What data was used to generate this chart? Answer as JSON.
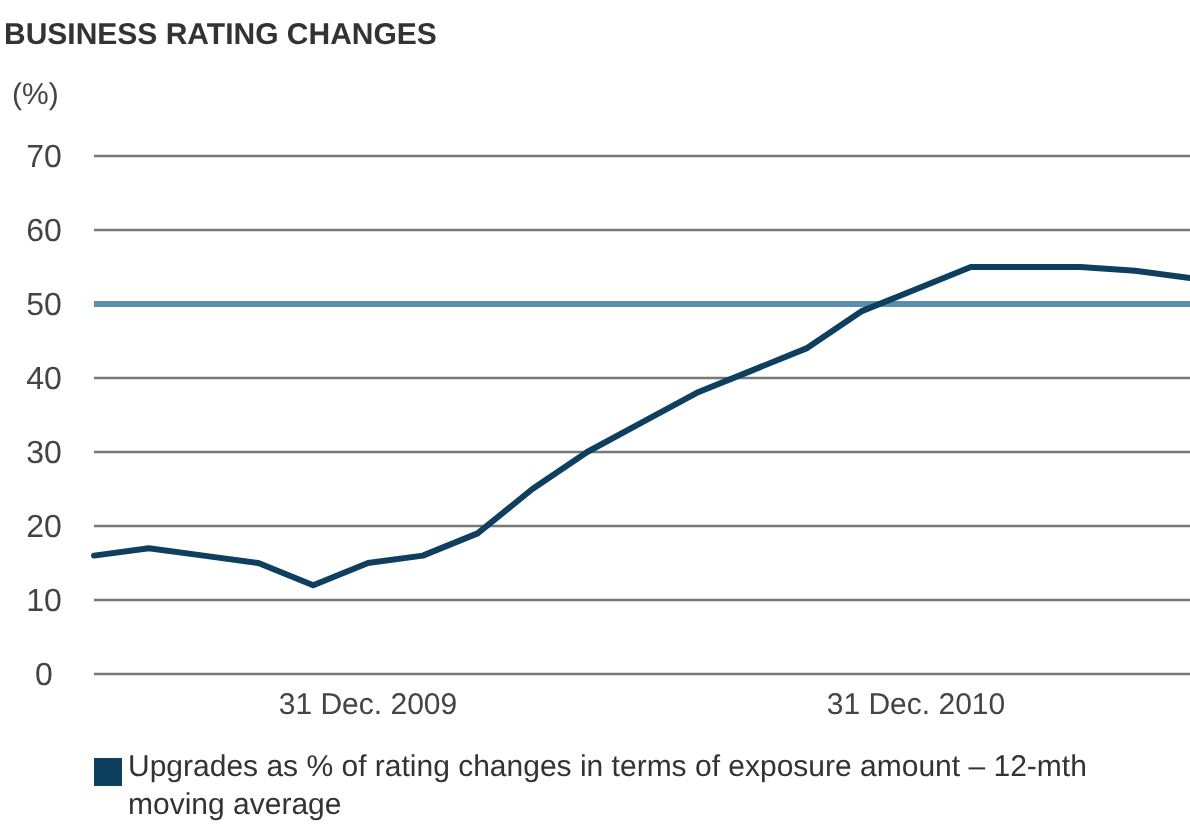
{
  "chart_data": {
    "type": "line",
    "title": "BUSINESS RATING CHANGES",
    "ylabel": "(%)",
    "categories": [
      null,
      null,
      null,
      null,
      null,
      "31 Dec. 2009",
      null,
      null,
      null,
      null,
      null,
      null,
      null,
      null,
      null,
      "31 Dec. 2010",
      null,
      null,
      null,
      null,
      null
    ],
    "series": [
      {
        "name": "Upgrades as % of rating changes in terms of exposure amount – 12-mth moving average",
        "color": "#0e3f5e",
        "values": [
          16,
          17,
          16,
          15,
          12,
          15,
          16,
          19,
          25,
          30,
          34,
          38,
          41,
          44,
          49,
          52,
          55,
          55,
          55,
          54.5,
          53.5
        ]
      }
    ],
    "ylim": [
      0,
      70
    ],
    "yticks": [
      0,
      10,
      20,
      30,
      40,
      50,
      60,
      70
    ],
    "grid": "y",
    "legend": "bottom",
    "marker": "none",
    "line_style": "solid",
    "ref_lines": [
      {
        "axis": "y",
        "value": 50,
        "color": "#5b8fb0"
      }
    ]
  }
}
